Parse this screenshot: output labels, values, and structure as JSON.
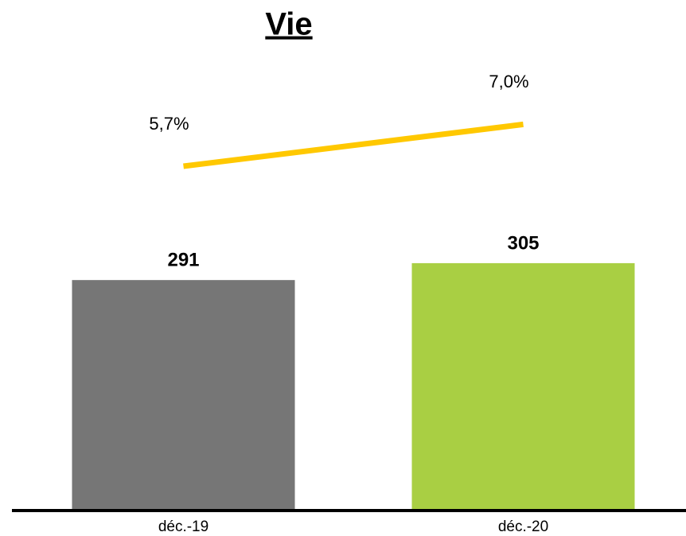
{
  "chart_data": {
    "type": "bar",
    "title": "Vie",
    "categories": [
      "déc.-19",
      "déc.-20"
    ],
    "series": [
      {
        "type": "bar",
        "values": [
          291,
          305
        ],
        "colors": [
          "#767676",
          "#a9cf43"
        ]
      },
      {
        "type": "line",
        "axis": "y2",
        "values": [
          5.7,
          7.0
        ],
        "value_labels": [
          "5,7%",
          "7,0%"
        ],
        "color": "#ffc800"
      }
    ],
    "ylim": [
      100,
      500
    ],
    "y2lim": [
      -5,
      10
    ]
  }
}
